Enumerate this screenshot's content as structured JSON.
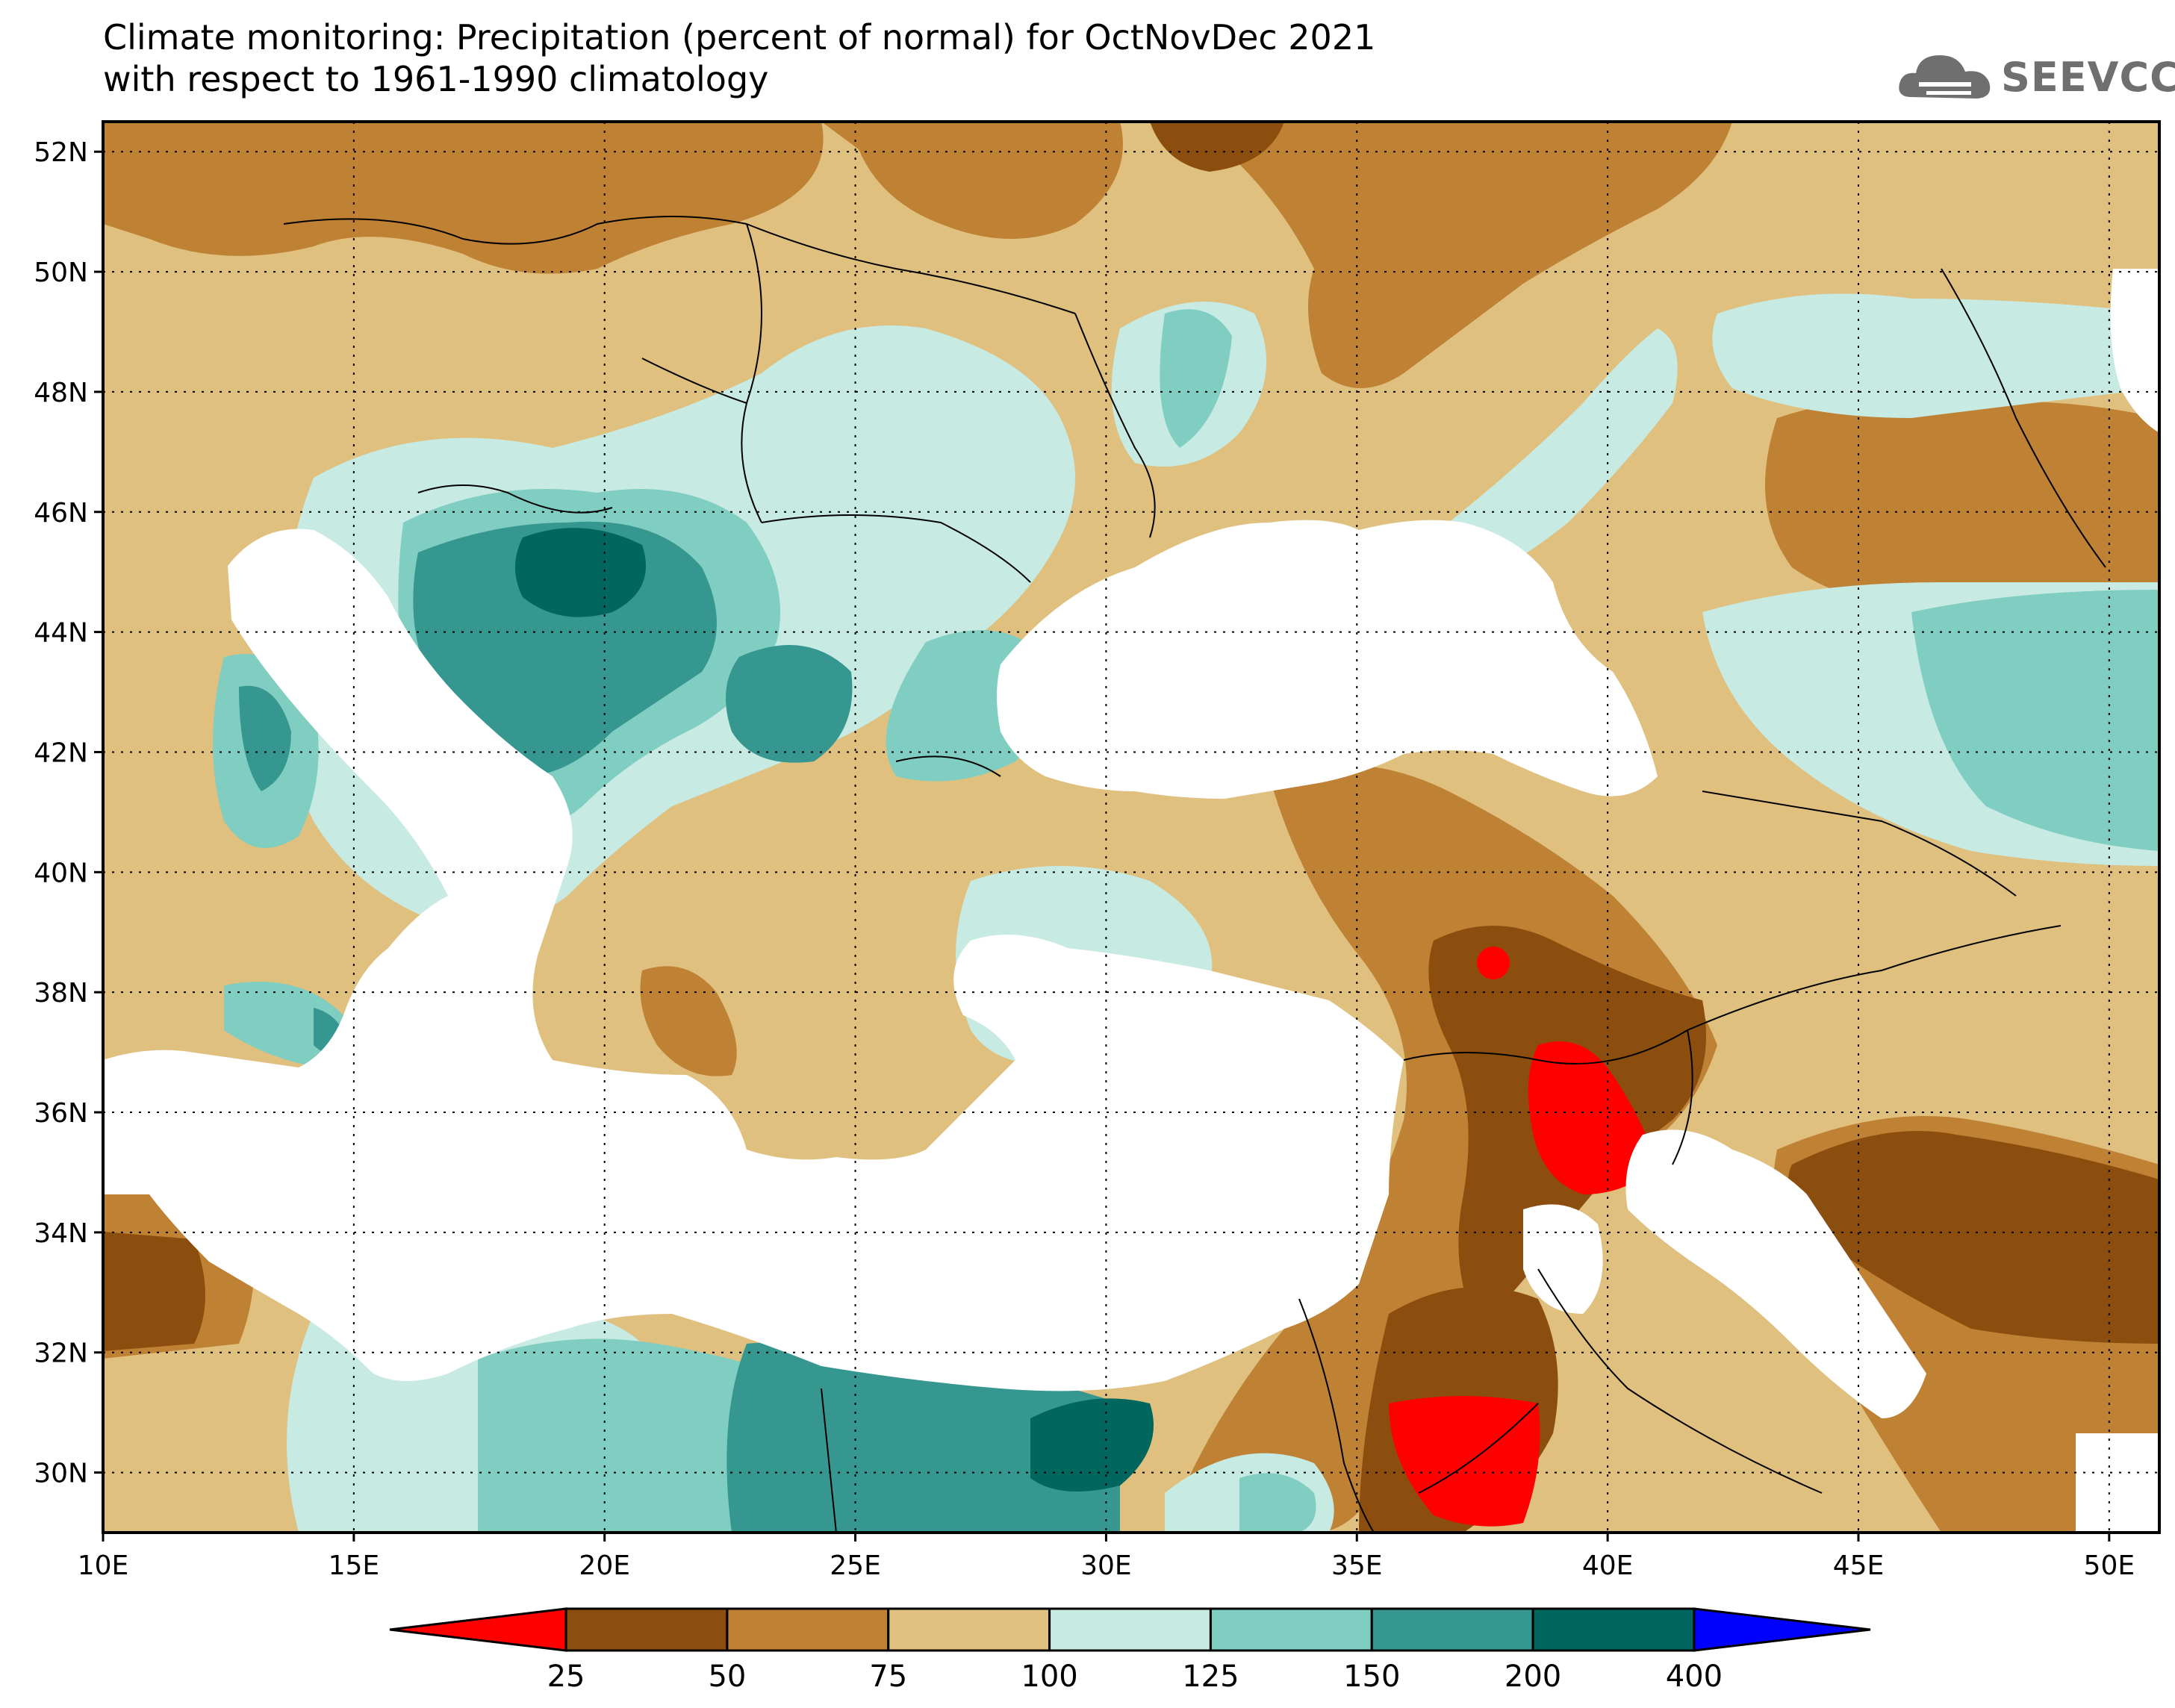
{
  "title": {
    "line1": "Climate monitoring: Precipitation (percent of normal) for OctNovDec 2021",
    "line2": "with respect to 1961-1990 climatology"
  },
  "logo": {
    "text": "SEEVCCC",
    "icon": "cloud-icon"
  },
  "map": {
    "lon_range": [
      10,
      51
    ],
    "lat_range": [
      29,
      52.5
    ],
    "lon_ticks": [
      "10E",
      "15E",
      "20E",
      "25E",
      "30E",
      "35E",
      "40E",
      "45E",
      "50E"
    ],
    "lat_ticks": [
      "52N",
      "50N",
      "48N",
      "46N",
      "44N",
      "42N",
      "40N",
      "38N",
      "36N",
      "34N",
      "32N",
      "30N"
    ],
    "grid": true
  },
  "legend": {
    "labels": [
      "25",
      "50",
      "75",
      "100",
      "125",
      "150",
      "200",
      "400"
    ],
    "colors": [
      "#ff0000",
      "#8b4e0e",
      "#bf8133",
      "#dfc07f",
      "#c7eae3",
      "#80cdc1",
      "#35978f",
      "#01665e",
      "#0000ff"
    ]
  }
}
